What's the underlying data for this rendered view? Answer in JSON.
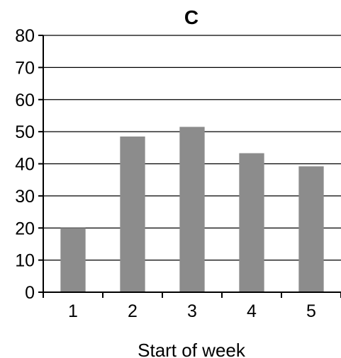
{
  "chart_data": {
    "type": "bar",
    "title": "C",
    "xlabel": "Start of week",
    "ylabel": "",
    "categories": [
      "1",
      "2",
      "3",
      "4",
      "5"
    ],
    "values": [
      20,
      48.5,
      51.5,
      43.3,
      39.2
    ],
    "ylim": [
      0,
      80
    ],
    "yticks": [
      0,
      10,
      20,
      30,
      40,
      50,
      60,
      70,
      80
    ],
    "grid": true,
    "bar_color": "#8c8c8c"
  }
}
